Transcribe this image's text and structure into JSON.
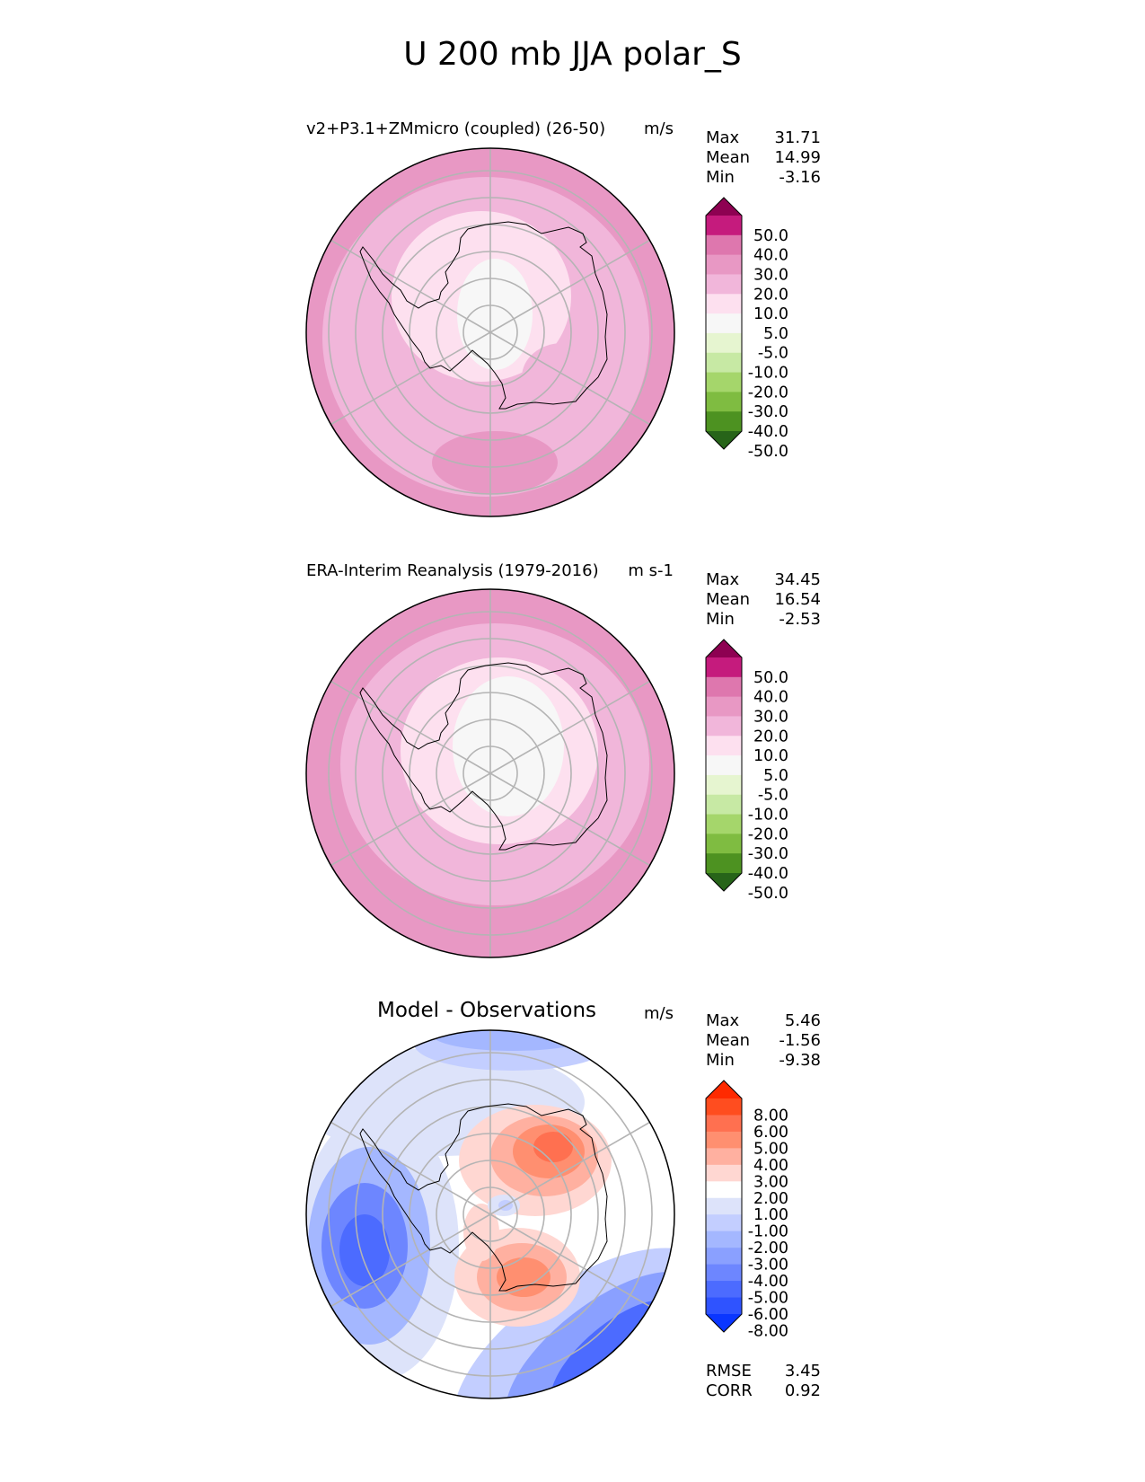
{
  "title": "U 200 mb JJA polar_S",
  "colors": {
    "uv_levels": [
      "#8e0152",
      "#c51b7d",
      "#de77ae",
      "#e898c4",
      "#f1b6da",
      "#fde0ef",
      "#f7f7f7",
      "#e6f5d0",
      "#c7e9a4",
      "#a5d66b",
      "#7fbc41",
      "#4d9221",
      "#276419"
    ],
    "diff_levels": [
      "#ff2a00",
      "#ff4d1f",
      "#ff7050",
      "#ff8f70",
      "#ffb0a0",
      "#ffd7d2",
      "#ffffff",
      "#dde3fa",
      "#c3ceff",
      "#a4b7ff",
      "#8aa0ff",
      "#6d86ff",
      "#4c6bff",
      "#2f53ff",
      "#0a36ff"
    ]
  },
  "panels": [
    {
      "id": "test",
      "title": "v2+P3.1+ZMmicro (coupled) (26-50)",
      "units": "m/s",
      "stats": [
        {
          "label": "Max",
          "value": "31.71"
        },
        {
          "label": "Mean",
          "value": "14.99"
        },
        {
          "label": "Min",
          "value": "-3.16"
        }
      ]
    },
    {
      "id": "ref",
      "title": "ERA-Interim Reanalysis (1979-2016)",
      "units": "m s-1",
      "stats": [
        {
          "label": "Max",
          "value": "34.45"
        },
        {
          "label": "Mean",
          "value": "16.54"
        },
        {
          "label": "Min",
          "value": "-2.53"
        }
      ]
    },
    {
      "id": "diff",
      "title": "Model - Observations",
      "units": "m/s",
      "stats": [
        {
          "label": "Max",
          "value": "5.46"
        },
        {
          "label": "Mean",
          "value": "-1.56"
        },
        {
          "label": "Min",
          "value": "-9.38"
        }
      ],
      "metrics": [
        {
          "label": "RMSE",
          "value": "3.45"
        },
        {
          "label": "CORR",
          "value": "0.92"
        }
      ]
    }
  ],
  "chart_data": [
    {
      "type": "heatmap",
      "projection": "south polar stereographic",
      "title": "v2+P3.1+ZMmicro (coupled) (26-50)",
      "units": "m/s",
      "colorbar_ticks": [
        "50.0",
        "40.0",
        "30.0",
        "20.0",
        "10.0",
        "5.0",
        "-5.0",
        "-10.0",
        "-20.0",
        "-30.0",
        "-40.0",
        "-50.0"
      ],
      "max": 31.71,
      "mean": 14.99,
      "min": -3.16
    },
    {
      "type": "heatmap",
      "projection": "south polar stereographic",
      "title": "ERA-Interim Reanalysis (1979-2016)",
      "units": "m s-1",
      "colorbar_ticks": [
        "50.0",
        "40.0",
        "30.0",
        "20.0",
        "10.0",
        "5.0",
        "-5.0",
        "-10.0",
        "-20.0",
        "-30.0",
        "-40.0",
        "-50.0"
      ],
      "max": 34.45,
      "mean": 16.54,
      "min": -2.53
    },
    {
      "type": "heatmap",
      "projection": "south polar stereographic",
      "title": "Model - Observations",
      "units": "m/s",
      "colorbar_ticks": [
        "8.00",
        "6.00",
        "5.00",
        "4.00",
        "3.00",
        "2.00",
        "1.00",
        "-1.00",
        "-2.00",
        "-3.00",
        "-4.00",
        "-5.00",
        "-6.00",
        "-8.00"
      ],
      "max": 5.46,
      "mean": -1.56,
      "min": -9.38,
      "rmse": 3.45,
      "corr": 0.92
    }
  ]
}
